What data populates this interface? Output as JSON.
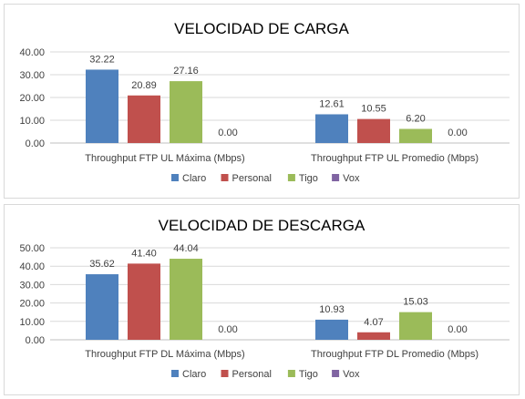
{
  "chart_data": [
    {
      "type": "bar",
      "title": "VELOCIDAD DE CARGA",
      "categories": [
        "Throughput FTP UL Máxima (Mbps)",
        "Throughput FTP UL Promedio (Mbps)"
      ],
      "series": [
        {
          "name": "Claro",
          "color": "#4f81bd",
          "values": [
            32.22,
            12.61
          ],
          "labels": [
            "32.22",
            "12.61"
          ]
        },
        {
          "name": "Personal",
          "color": "#c0504d",
          "values": [
            20.89,
            10.55
          ],
          "labels": [
            "20.89",
            "10.55"
          ]
        },
        {
          "name": "Tigo",
          "color": "#9bbb59",
          "values": [
            27.16,
            6.2
          ],
          "labels": [
            "27.16",
            "6.20"
          ]
        },
        {
          "name": "Vox",
          "color": "#8064a2",
          "values": [
            0,
            0
          ],
          "labels": [
            "0.00",
            "0.00"
          ]
        }
      ],
      "ylim": [
        0,
        40
      ],
      "yticks": [
        "0.00",
        "10.00",
        "20.00",
        "30.00",
        "40.00"
      ],
      "legend": "bottom",
      "grid": true
    },
    {
      "type": "bar",
      "title": "VELOCIDAD DE DESCARGA",
      "categories": [
        "Throughput FTP DL Máxima (Mbps)",
        "Throughput FTP DL Promedio (Mbps)"
      ],
      "series": [
        {
          "name": "Claro",
          "color": "#4f81bd",
          "values": [
            35.62,
            10.93
          ],
          "labels": [
            "35.62",
            "10.93"
          ]
        },
        {
          "name": "Personal",
          "color": "#c0504d",
          "values": [
            41.4,
            4.07
          ],
          "labels": [
            "41.40",
            "4.07"
          ]
        },
        {
          "name": "Tigo",
          "color": "#9bbb59",
          "values": [
            44.04,
            15.03
          ],
          "labels": [
            "44.04",
            "15.03"
          ]
        },
        {
          "name": "Vox",
          "color": "#8064a2",
          "values": [
            0,
            0
          ],
          "labels": [
            "0.00",
            "0.00"
          ]
        }
      ],
      "ylim": [
        0,
        50
      ],
      "yticks": [
        "0.00",
        "10.00",
        "20.00",
        "30.00",
        "40.00",
        "50.00"
      ],
      "legend": "bottom",
      "grid": true
    }
  ]
}
